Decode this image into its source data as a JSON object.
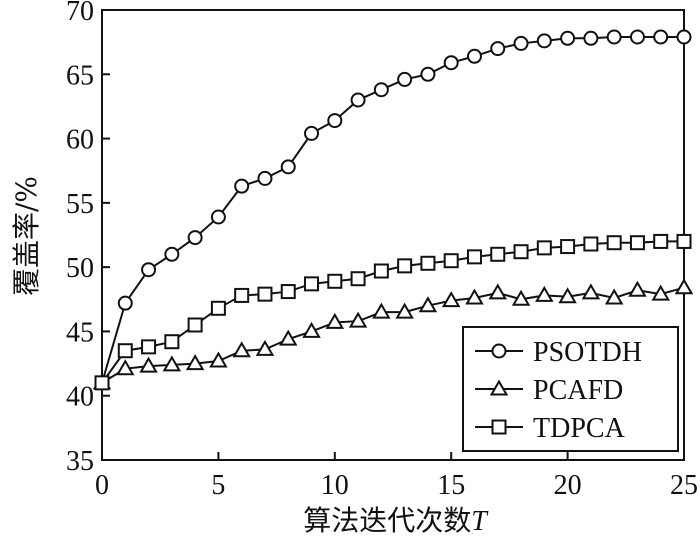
{
  "chart_data": {
    "type": "line",
    "xlabel": "算法迭代次数",
    "xlabel_var": "T",
    "ylabel": "覆盖率/%",
    "xlim": [
      0,
      25
    ],
    "ylim": [
      35,
      70
    ],
    "xticks": [
      0,
      5,
      10,
      15,
      20,
      25
    ],
    "yticks": [
      35,
      40,
      45,
      50,
      55,
      60,
      65,
      70
    ],
    "grid": false,
    "legend_position": "bottom-right",
    "x": [
      0,
      1,
      2,
      3,
      4,
      5,
      6,
      7,
      8,
      9,
      10,
      11,
      12,
      13,
      14,
      15,
      16,
      17,
      18,
      19,
      20,
      21,
      22,
      23,
      24,
      25
    ],
    "series": [
      {
        "name": "PSOTDH",
        "marker": "circle",
        "values": [
          41.0,
          47.2,
          49.8,
          51.0,
          52.3,
          53.9,
          56.3,
          56.9,
          57.8,
          60.4,
          61.4,
          63.0,
          63.8,
          64.6,
          65.0,
          65.9,
          66.4,
          67.0,
          67.4,
          67.6,
          67.8,
          67.8,
          67.9,
          67.9,
          67.9,
          67.9
        ]
      },
      {
        "name": "PCAFD",
        "marker": "triangle",
        "values": [
          41.0,
          42.1,
          42.3,
          42.4,
          42.5,
          42.7,
          43.5,
          43.6,
          44.4,
          45.0,
          45.7,
          45.8,
          46.5,
          46.5,
          47.0,
          47.4,
          47.6,
          48.0,
          47.5,
          47.8,
          47.7,
          48.0,
          47.6,
          48.2,
          47.9,
          48.4
        ]
      },
      {
        "name": "TDPCA",
        "marker": "square",
        "values": [
          41.0,
          43.5,
          43.8,
          44.2,
          45.5,
          46.8,
          47.8,
          47.9,
          48.1,
          48.7,
          48.9,
          49.1,
          49.7,
          50.1,
          50.3,
          50.5,
          50.8,
          51.0,
          51.2,
          51.5,
          51.6,
          51.8,
          51.9,
          51.9,
          52.0,
          52.0
        ]
      }
    ]
  }
}
